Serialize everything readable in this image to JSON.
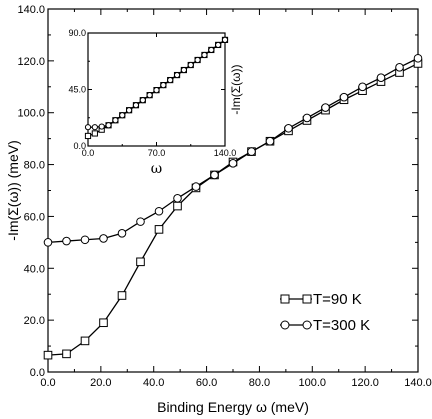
{
  "chart_data": [
    {
      "type": "line",
      "title": "",
      "xlabel": "Binding Energy ω (meV)",
      "ylabel": "-Im(Σ(ω)) (meV)",
      "xlim": [
        0,
        140
      ],
      "ylim": [
        0,
        140
      ],
      "x_ticks": [
        "0.0",
        "20.0",
        "40.0",
        "60.0",
        "80.0",
        "100.0",
        "120.0",
        "140.0"
      ],
      "y_ticks": [
        "0.0",
        "20.0",
        "40.0",
        "60.0",
        "80.0",
        "100.0",
        "120.0",
        "140.0"
      ],
      "grid": false,
      "legend_position": "bottom-right",
      "series": [
        {
          "name": "T=90 K",
          "marker": "square",
          "x": [
            0,
            7,
            14,
            21,
            28,
            35,
            42,
            49,
            56,
            63,
            70,
            77,
            84,
            91,
            98,
            105,
            112,
            119,
            126,
            133,
            140
          ],
          "y": [
            6.5,
            7,
            12,
            19,
            29.5,
            42.5,
            55,
            64,
            71,
            76,
            81,
            85,
            89,
            93,
            97,
            101,
            105,
            108.5,
            112,
            115.5,
            119
          ]
        },
        {
          "name": "T=300 K",
          "marker": "circle",
          "x": [
            0,
            7,
            14,
            21,
            28,
            35,
            42,
            49,
            56,
            63,
            70,
            77,
            84,
            91,
            98,
            105,
            112,
            119,
            126,
            133,
            140
          ],
          "y": [
            50,
            50.5,
            51,
            51.5,
            53.5,
            58,
            62,
            67,
            71.5,
            76,
            80.5,
            85,
            89,
            94,
            98,
            102,
            106,
            110,
            113.5,
            117.5,
            121
          ]
        }
      ]
    },
    {
      "type": "line",
      "title": "",
      "xlabel": "ω",
      "ylabel": "-Im(Σ(ω))",
      "xlim": [
        0,
        140
      ],
      "ylim": [
        0,
        90
      ],
      "x_ticks": [
        "0.0",
        "70.0",
        "140.0"
      ],
      "y_ticks": [
        "0.0",
        "45.0",
        "90.0"
      ],
      "series": [
        {
          "name": "T=90 K",
          "marker": "square",
          "x": [
            0,
            7,
            14,
            21,
            28,
            35,
            42,
            49,
            56,
            63,
            70,
            77,
            84,
            91,
            98,
            105,
            112,
            119,
            126,
            133,
            140
          ],
          "y": [
            8,
            10,
            13,
            16.5,
            20.5,
            24.5,
            28.5,
            32.5,
            36.5,
            40.5,
            44.5,
            48.5,
            52.5,
            56.5,
            60.5,
            64.5,
            68.5,
            72.5,
            76.5,
            80.5,
            84.5
          ]
        },
        {
          "name": "T=300 K",
          "marker": "circle",
          "x": [
            0,
            7,
            14,
            21,
            28,
            35,
            42,
            49,
            56,
            63,
            70,
            77,
            84,
            91,
            98,
            105,
            112,
            119,
            126,
            133,
            140
          ],
          "y": [
            15,
            15,
            15.5,
            16.5,
            20.5,
            24.5,
            28.5,
            32.5,
            36.5,
            40.5,
            44.5,
            48.5,
            52.5,
            56.5,
            60.5,
            64.5,
            68.5,
            72.5,
            76.5,
            80.5,
            84.5
          ]
        }
      ]
    }
  ]
}
